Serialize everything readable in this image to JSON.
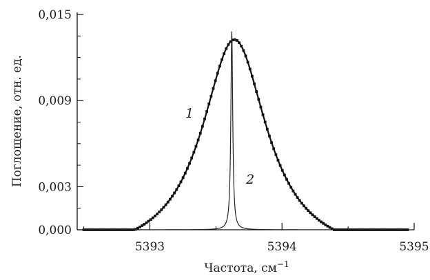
{
  "chart_data": {
    "type": "line",
    "xlabel": "Частота, см",
    "xlabel_sup": "−1",
    "ylabel": "Поглощение, отн. ед.",
    "xlim": [
      5392.45,
      5395.0
    ],
    "ylim": [
      0.0,
      0.015
    ],
    "x_ticks": [
      5393,
      5394,
      5395
    ],
    "x_tick_labels": [
      "5393",
      "5394",
      "5395"
    ],
    "x_minor_ticks": [
      5392.5,
      5393.5,
      5394.5
    ],
    "y_ticks": [
      0.0,
      0.003,
      0.009,
      0.015
    ],
    "y_tick_labels": [
      "0,000",
      "0,003",
      "0,009",
      "0,015"
    ],
    "y_minor_ticks": [
      0.0015,
      0.0045,
      0.006,
      0.0075,
      0.0105,
      0.012,
      0.0135
    ],
    "grid": false,
    "series": [
      {
        "name": "1",
        "marker": "square",
        "line_width": "bold",
        "color": "#111111",
        "profile": "lorentzian",
        "center": 5393.64,
        "peak": 0.01325,
        "hwhm": 0.3,
        "baseline": -0.0021,
        "x_range": [
          5392.5,
          5394.95
        ],
        "x": [
          5392.5,
          5392.7,
          5392.9,
          5393.1,
          5393.3,
          5393.5,
          5393.64,
          5393.8,
          5394.0,
          5394.2,
          5394.4,
          5394.6,
          5394.8,
          5394.95
        ],
        "values": [
          0.0001,
          0.0007,
          0.0016,
          0.0031,
          0.0062,
          0.0113,
          0.0132,
          0.0117,
          0.0077,
          0.0043,
          0.0025,
          0.0013,
          0.0005,
          0.0001
        ]
      },
      {
        "name": "2",
        "marker": "none",
        "line_width": "thin",
        "color": "#222222",
        "profile": "lorentzian",
        "center": 5393.62,
        "peak": 0.0138,
        "hwhm": 0.0085,
        "baseline": 0.0,
        "x_range": [
          5392.5,
          5394.95
        ],
        "x": [
          5392.5,
          5393.5,
          5393.58,
          5393.6,
          5393.62,
          5393.64,
          5393.66,
          5393.74,
          5394.95
        ],
        "values": [
          0.0,
          0.0001,
          0.0006,
          0.0022,
          0.0138,
          0.0022,
          0.0006,
          0.0001,
          0.0
        ]
      }
    ],
    "annotations": [
      {
        "text": "1",
        "x": 5393.3,
        "y": 0.0078
      },
      {
        "text": "2",
        "x": 5393.76,
        "y": 0.0032
      }
    ]
  }
}
